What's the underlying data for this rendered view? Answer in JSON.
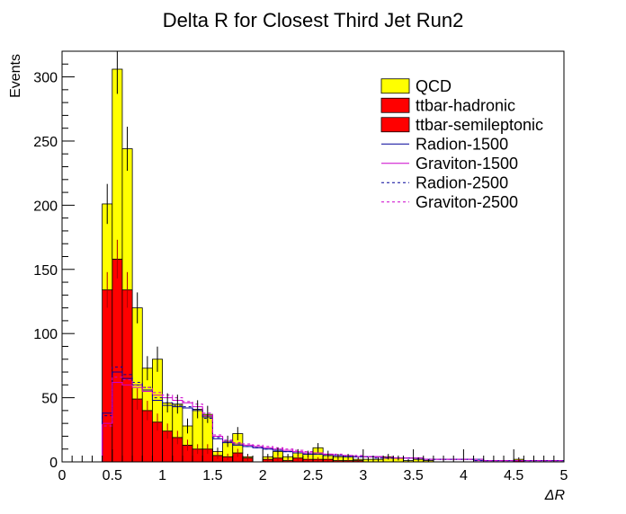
{
  "chart_data": {
    "type": "bar",
    "title": "Delta R for Closest Third Jet Run2",
    "xlabel": "ΔR",
    "ylabel": "Events",
    "xlim": [
      0,
      5
    ],
    "ylim": [
      0,
      320
    ],
    "bin_width": 0.1,
    "x_ticks": [
      0,
      0.5,
      1,
      1.5,
      2,
      2.5,
      3,
      3.5,
      4,
      4.5,
      5
    ],
    "x_tick_labels": [
      "0",
      "0.5",
      "1",
      "1.5",
      "2",
      "2.5",
      "3",
      "3.5",
      "4",
      "4.5",
      "5"
    ],
    "y_ticks": [
      0,
      50,
      100,
      150,
      200,
      250,
      300
    ],
    "y_tick_labels": [
      "0",
      "50",
      "100",
      "150",
      "200",
      "250",
      "300"
    ],
    "grid": false,
    "legend_position": "top-right",
    "bin_edges_start": [
      0.4,
      0.5,
      0.6,
      0.7,
      0.8,
      0.9,
      1.0,
      1.1,
      1.2,
      1.3,
      1.4,
      1.5,
      1.6,
      1.7,
      1.8,
      1.9,
      2.0,
      2.1,
      2.2,
      2.3,
      2.4,
      2.5,
      2.6,
      2.7,
      2.8,
      2.9,
      3.0,
      3.1,
      3.2,
      3.3,
      3.4,
      3.5,
      3.6,
      3.7,
      3.8,
      3.9,
      4.0,
      4.1,
      4.2,
      4.3,
      4.4,
      4.5,
      4.6,
      4.7,
      4.8,
      4.9
    ],
    "stacked_series": [
      {
        "name": "ttbar-hadronic",
        "color": "#ff0000",
        "values": [
          134,
          158,
          134,
          49,
          40,
          31,
          24,
          19,
          13,
          10,
          10,
          5,
          4,
          7,
          3,
          0,
          2,
          3,
          1,
          3,
          2,
          2,
          2,
          1,
          1,
          1,
          0,
          0,
          0,
          0,
          0,
          0,
          0,
          0,
          0,
          0,
          0,
          0,
          0,
          0,
          0,
          1,
          0,
          0,
          0,
          0
        ]
      },
      {
        "name": "ttbar-semileptonic",
        "color": "#ff0000",
        "values": [
          0,
          0,
          0,
          0,
          0,
          0,
          0,
          0,
          0,
          0,
          0,
          0,
          0,
          0,
          0,
          0,
          0,
          0,
          0,
          0,
          0,
          0,
          0,
          0,
          0,
          0,
          0,
          0,
          0,
          0,
          0,
          0,
          0,
          0,
          0,
          0,
          0,
          0,
          0,
          0,
          0,
          0,
          0,
          0,
          0,
          0
        ]
      },
      {
        "name": "QCD",
        "color": "#ffff00",
        "values": [
          67,
          148,
          110,
          71,
          33,
          49,
          22,
          26,
          15,
          31,
          27,
          3,
          12,
          15,
          1,
          0,
          2,
          5,
          3,
          4,
          4,
          9,
          4,
          3,
          3,
          1,
          2,
          2,
          4,
          3,
          1,
          2,
          1,
          0,
          0,
          0,
          0,
          0,
          0,
          0,
          0,
          1,
          0,
          0,
          0,
          0
        ]
      }
    ],
    "overlay_series": [
      {
        "name": "Radion-1500",
        "color": "#000099",
        "dashed": false,
        "values": [
          38,
          70,
          65,
          60,
          56,
          48,
          44,
          43,
          42,
          40,
          35,
          18,
          15,
          13,
          12,
          11,
          10,
          9,
          8,
          7,
          6,
          6,
          5,
          5,
          4,
          4,
          4,
          4,
          3,
          3,
          3,
          3,
          2,
          2,
          2,
          2,
          2,
          2,
          1,
          1,
          1,
          1,
          1,
          1,
          1,
          1
        ]
      },
      {
        "name": "Graviton-1500",
        "color": "#cc00cc",
        "dashed": false,
        "values": [
          30,
          62,
          60,
          58,
          55,
          52,
          50,
          48,
          46,
          43,
          36,
          20,
          16,
          14,
          13,
          12,
          11,
          10,
          9,
          8,
          7,
          7,
          6,
          5,
          5,
          4,
          4,
          4,
          3,
          3,
          3,
          3,
          2,
          2,
          2,
          2,
          2,
          1,
          1,
          1,
          1,
          1,
          1,
          1,
          1,
          1
        ]
      },
      {
        "name": "Radion-2500",
        "color": "#000099",
        "dashed": true,
        "values": [
          36,
          74,
          68,
          62,
          58,
          50,
          46,
          44,
          43,
          41,
          34,
          19,
          16,
          14,
          12,
          11,
          10,
          9,
          8,
          7,
          6,
          6,
          5,
          5,
          4,
          4,
          4,
          3,
          3,
          3,
          3,
          2,
          2,
          2,
          2,
          2,
          2,
          1,
          1,
          1,
          1,
          1,
          1,
          1,
          1,
          1
        ]
      },
      {
        "name": "Graviton-2500",
        "color": "#cc00cc",
        "dashed": true,
        "values": [
          28,
          66,
          64,
          60,
          58,
          54,
          52,
          50,
          47,
          45,
          38,
          21,
          17,
          15,
          14,
          13,
          12,
          11,
          10,
          9,
          8,
          7,
          6,
          6,
          5,
          5,
          4,
          4,
          4,
          3,
          3,
          3,
          2,
          2,
          2,
          2,
          2,
          2,
          1,
          1,
          1,
          1,
          1,
          1,
          1,
          1
        ]
      }
    ],
    "legend": [
      {
        "label": "QCD",
        "style": "fill",
        "color": "#ffff00"
      },
      {
        "label": "ttbar-hadronic",
        "style": "fill",
        "color": "#ff0000"
      },
      {
        "label": "ttbar-semileptonic",
        "style": "fill",
        "color": "#ff0000"
      },
      {
        "label": "Radion-1500",
        "style": "line",
        "color": "#000099"
      },
      {
        "label": "Graviton-1500",
        "style": "line",
        "color": "#cc00cc"
      },
      {
        "label": "Radion-2500",
        "style": "dashed",
        "color": "#000099"
      },
      {
        "label": "Graviton-2500",
        "style": "dashed",
        "color": "#cc00cc"
      }
    ]
  }
}
